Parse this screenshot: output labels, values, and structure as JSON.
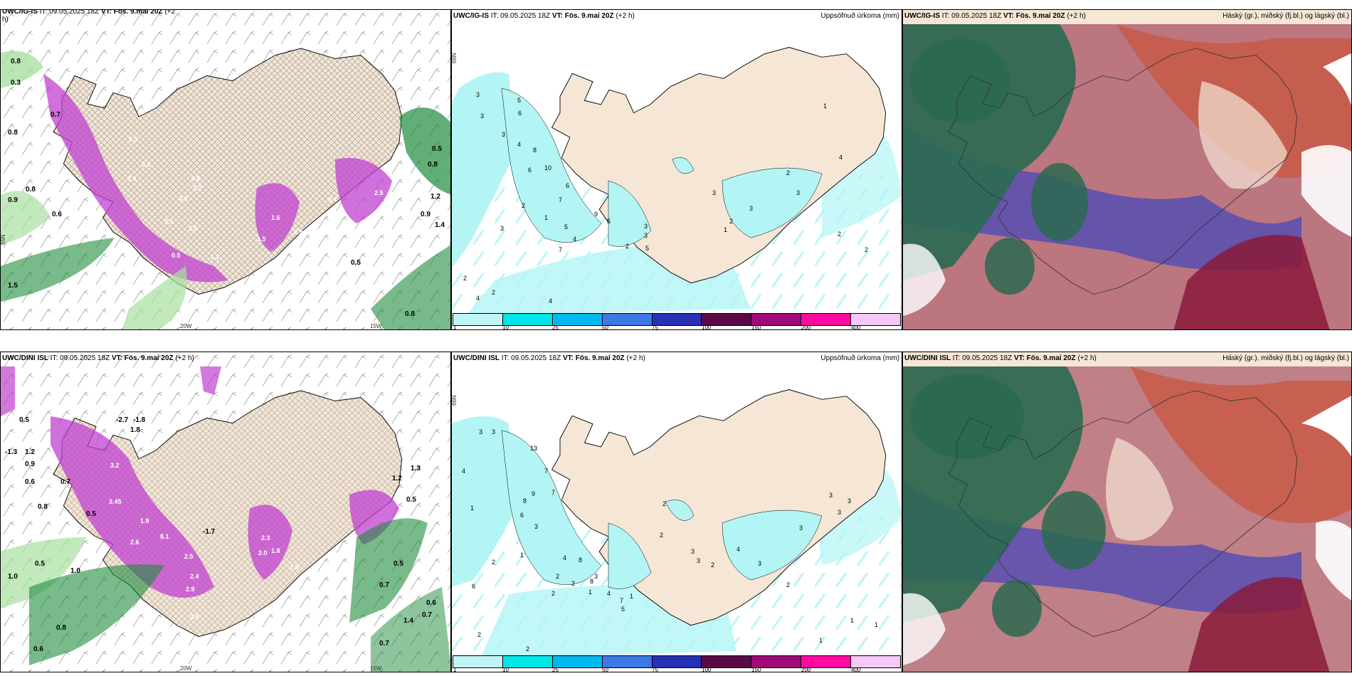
{
  "panels": {
    "p1": {
      "model": "UWC/IG-IS",
      "it": "IT: 09.05.2025 18Z",
      "vt_label": "VT:",
      "vt": "Fös. 9.maí 20Z",
      "lead": "(+2",
      "lead2": "h)",
      "right": ""
    },
    "p2": {
      "model": "UWC/IG-IS",
      "it": "IT: 09.05.2025 18Z",
      "vt_label": "VT:",
      "vt": "Fös. 9.maí 20Z",
      "lead": "(+2 h)",
      "right": "Uppsöfnuð úrkoma (mm)"
    },
    "p3": {
      "model": "UWC/IG-IS",
      "it": "IT: 09.05.2025 18Z",
      "vt_label": "VT:",
      "vt": "Fös. 9.maí 20Z",
      "lead": "(+2 h)",
      "right": "Háský (gr.), miðský (fj.bl.) og lágský (bl.)"
    },
    "p4": {
      "model": "UWC/DINI ISL",
      "it": "IT: 09.05.2025 18Z",
      "vt_label": "VT:",
      "vt": "Fös. 9.maí 20Z",
      "lead": "(+2 h)",
      "right": ""
    },
    "p5": {
      "model": "UWC/DINI ISL",
      "it": "IT: 09.05.2025 18Z",
      "vt_label": "VT:",
      "vt": "Fös. 9.maí 20Z",
      "lead": "(+2 h)",
      "right": "Uppsöfnuð úrkoma (mm)"
    },
    "p6": {
      "model": "UWC/DINI ISL",
      "it": "IT: 09.05.2025 18Z",
      "vt_label": "VT:",
      "vt": "Fös. 9.maí 20Z",
      "lead": "(+2 h)",
      "right": "Háský (gr.), miðský (fj.bl.) og lágský (bl.)"
    }
  },
  "axis": {
    "lon1": "20W",
    "lon2": "15W",
    "lat1": "66N",
    "lat2": "65N"
  },
  "precip_legend": {
    "ticks": [
      "1",
      "10",
      "25",
      "50",
      "75",
      "100",
      "150",
      "200",
      "400"
    ],
    "colors": [
      "#bff5f5",
      "#00e5e5",
      "#00b8f0",
      "#3c78e6",
      "#2830b4",
      "#5a0a46",
      "#a00a78",
      "#ff0aa0",
      "#f5c8f5"
    ]
  },
  "colors": {
    "land": "#f5e6d6",
    "precip": "#b3f5f5",
    "purple": "#c040d0",
    "green": "#1e8c3c",
    "lightgreen": "#a8e0a0"
  },
  "p1_labels": [
    "0.8",
    "0.3",
    "0.7",
    "0.8",
    "0.9",
    "0.6",
    "0.8",
    "1.5",
    "0.3",
    "3.2",
    "2.9",
    "0.6",
    "1.2",
    "2.5",
    "1.6",
    "2.9",
    "0.4",
    "2.1",
    "3.3",
    "0.5",
    "1.2",
    "1.5",
    "2.5",
    "0.5",
    "0.5",
    "0.9",
    "1.4",
    "1.2",
    "0.8",
    "0.8"
  ],
  "p2_labels": [
    "3",
    "3",
    "3",
    "4",
    "5",
    "6",
    "8",
    "10",
    "6",
    "7",
    "2",
    "3",
    "1",
    "5",
    "4",
    "6",
    "9",
    "5",
    "3",
    "2",
    "5",
    "3",
    "7",
    "4",
    "2",
    "2",
    "1",
    "3",
    "2",
    "3",
    "2",
    "3",
    "2",
    "4",
    "2",
    "4",
    "1"
  ],
  "p4_labels": [
    "0.5",
    "-1.3",
    "1.2",
    "0.9",
    "0.6",
    "0.7",
    "0.8",
    "0.5",
    "-2.7",
    "-1.8",
    "1.8",
    "3.2",
    "3.45",
    "1.9",
    "2.6",
    "8.1",
    "2.5",
    "2.4",
    "2.9",
    "3.5",
    "-1.7",
    "2.3",
    "1.8",
    "2.0",
    "2.3",
    "1.0",
    "0.5",
    "0.8",
    "0.6",
    "1.0",
    "0.7",
    "0.6",
    "0.7",
    "0.7",
    "0.5",
    "1.4",
    "1.2",
    "0.5",
    "1.3"
  ],
  "p5_labels": [
    "4",
    "1",
    "3",
    "3",
    "13",
    "7",
    "9",
    "8",
    "6",
    "7",
    "3",
    "1",
    "2",
    "6",
    "4",
    "8",
    "2",
    "1",
    "3",
    "2",
    "2",
    "4",
    "8",
    "7",
    "1",
    "5",
    "2",
    "2",
    "3",
    "3",
    "2",
    "4",
    "3",
    "2",
    "3",
    "3",
    "3",
    "3",
    "1",
    "1",
    "1",
    "2",
    "2"
  ]
}
